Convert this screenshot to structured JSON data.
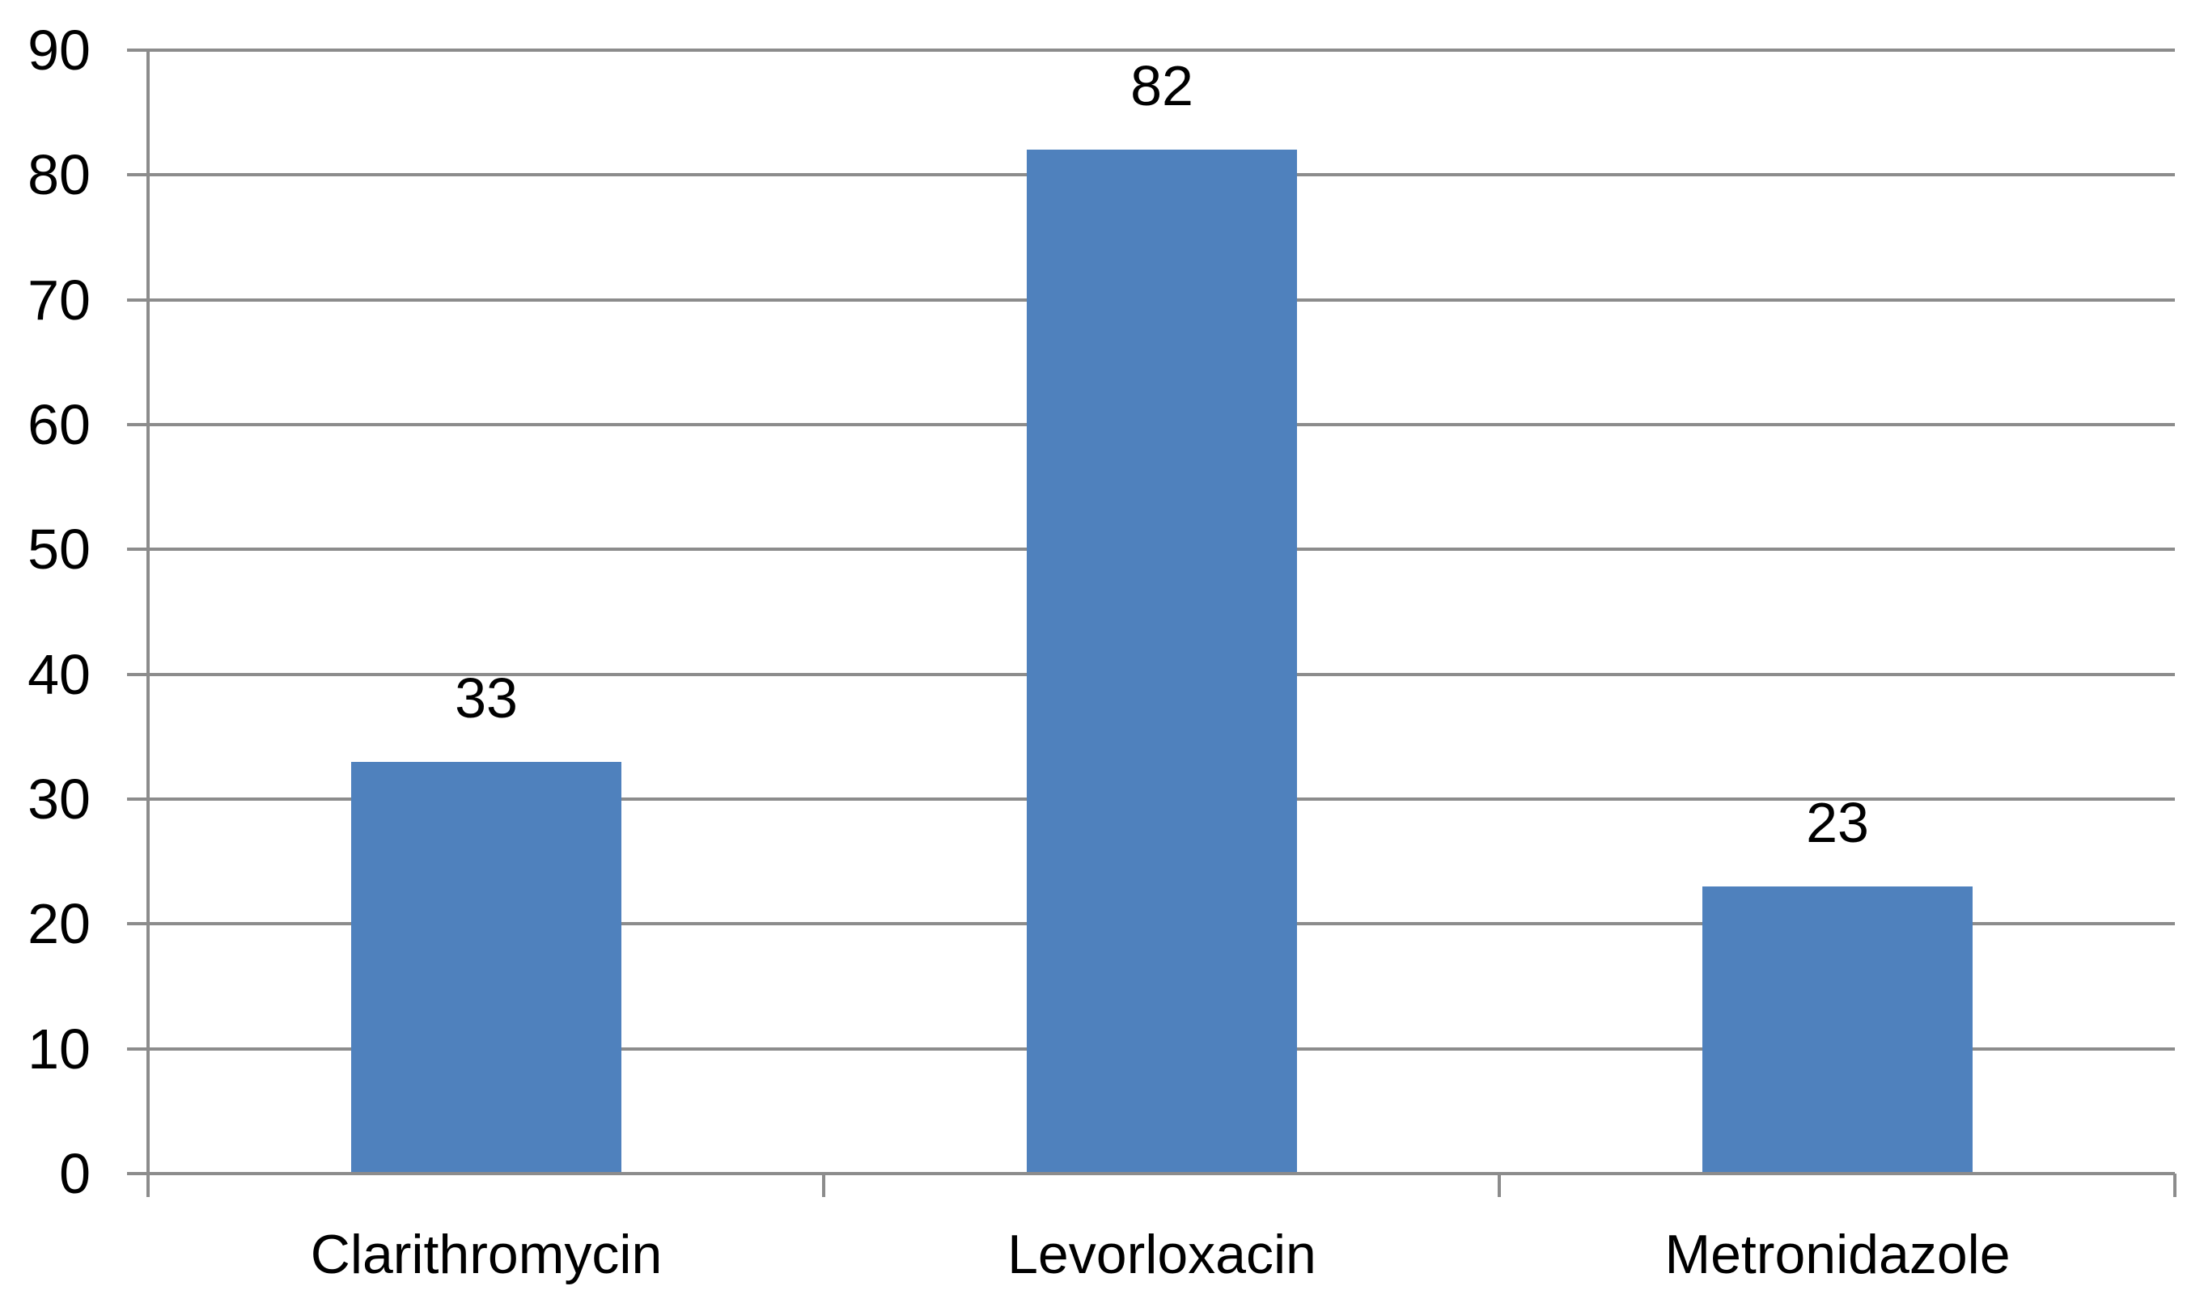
{
  "chart_data": {
    "type": "bar",
    "title": "",
    "subtitle": "",
    "xlabel": "",
    "ylabel": "",
    "categories": [
      "Clarithromycin",
      "Levorloxacin",
      "Metronidazole"
    ],
    "values": [
      33,
      82,
      23
    ],
    "data_labels": [
      "33",
      "82",
      "23"
    ],
    "ylim": [
      0,
      90
    ],
    "ytick_interval": 10,
    "ytick_labels": [
      "90",
      "80",
      "70",
      "60",
      "50",
      "40",
      "30",
      "20",
      "10",
      "0"
    ],
    "grid": "horizontal-only",
    "legend": "none",
    "bar_gap_ratio": 1.5,
    "colors": {
      "bar_fill": "#4F81BD",
      "gridline": "#8C8C8C",
      "axis": "#8C8C8C",
      "text": "#000000",
      "background": "#FFFFFF"
    }
  }
}
